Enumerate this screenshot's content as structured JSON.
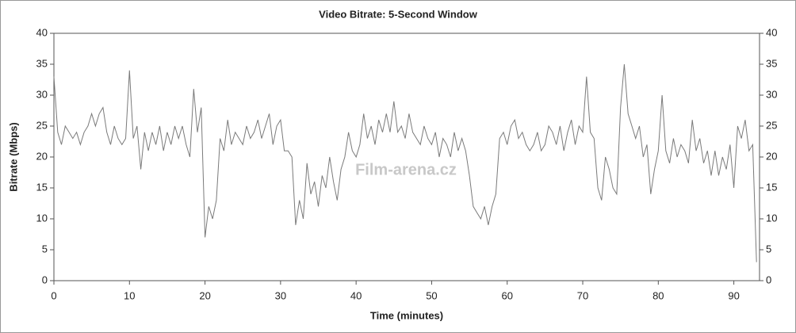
{
  "chart_data": {
    "type": "line",
    "title": "Video Bitrate: 5-Second Window",
    "x_label": "Time (minutes)",
    "y_label": "Bitrate (Mbps)",
    "watermark": "Film-arena.cz",
    "color": "#7a7a7a",
    "x": [
      0,
      0.5,
      1,
      1.5,
      2,
      2.5,
      3,
      3.5,
      4,
      4.5,
      5,
      5.5,
      6,
      6.5,
      7,
      7.5,
      8,
      8.5,
      9,
      9.5,
      10,
      10.5,
      11,
      11.5,
      12,
      12.5,
      13,
      13.5,
      14,
      14.5,
      15,
      15.5,
      16,
      16.5,
      17,
      17.5,
      18,
      18.5,
      19,
      19.5,
      20,
      20.5,
      21,
      21.5,
      22,
      22.5,
      23,
      23.5,
      24,
      24.5,
      25,
      25.5,
      26,
      26.5,
      27,
      27.5,
      28,
      28.5,
      29,
      29.5,
      30,
      30.5,
      31,
      31.5,
      32,
      32.5,
      33,
      33.5,
      34,
      34.5,
      35,
      35.5,
      36,
      36.5,
      37,
      37.5,
      38,
      38.5,
      39,
      39.5,
      40,
      40.5,
      41,
      41.5,
      42,
      42.5,
      43,
      43.5,
      44,
      44.5,
      45,
      45.5,
      46,
      46.5,
      47,
      47.5,
      48,
      48.5,
      49,
      49.5,
      50,
      50.5,
      51,
      51.5,
      52,
      52.5,
      53,
      53.5,
      54,
      54.5,
      55,
      55.5,
      56,
      56.5,
      57,
      57.5,
      58,
      58.5,
      59,
      59.5,
      60,
      60.5,
      61,
      61.5,
      62,
      62.5,
      63,
      63.5,
      64,
      64.5,
      65,
      65.5,
      66,
      66.5,
      67,
      67.5,
      68,
      68.5,
      69,
      69.5,
      70,
      70.5,
      71,
      71.5,
      72,
      72.5,
      73,
      73.5,
      74,
      74.5,
      75,
      75.5,
      76,
      76.5,
      77,
      77.5,
      78,
      78.5,
      79,
      79.5,
      80,
      80.5,
      81,
      81.5,
      82,
      82.5,
      83,
      83.5,
      84,
      84.5,
      85,
      85.5,
      86,
      86.5,
      87,
      87.5,
      88,
      88.5,
      89,
      89.5,
      90,
      90.5,
      91,
      91.5,
      92,
      92.5,
      93
    ],
    "values": [
      33,
      24,
      22,
      25,
      24,
      23,
      24,
      22,
      24,
      25,
      27,
      25,
      27,
      28,
      24,
      22,
      25,
      23,
      22,
      23,
      34,
      23,
      25,
      18,
      24,
      21,
      24,
      22,
      25,
      21,
      24,
      22,
      25,
      23,
      25,
      22,
      20,
      31,
      24,
      28,
      7,
      12,
      10,
      13,
      23,
      21,
      26,
      22,
      24,
      23,
      22,
      25,
      23,
      24,
      26,
      23,
      25,
      27,
      22,
      25,
      26,
      21,
      21,
      20,
      9,
      13,
      10,
      19,
      14,
      16,
      12,
      17,
      15,
      20,
      16,
      13,
      18,
      20,
      24,
      21,
      20,
      22,
      27,
      23,
      25,
      22,
      26,
      24,
      27,
      24,
      29,
      24,
      25,
      23,
      27,
      24,
      23,
      22,
      25,
      23,
      22,
      24,
      20,
      23,
      22,
      20,
      24,
      21,
      23,
      21,
      17,
      12,
      11,
      10,
      12,
      9,
      12,
      14,
      23,
      24,
      22,
      25,
      26,
      23,
      24,
      22,
      21,
      22,
      24,
      21,
      22,
      25,
      24,
      22,
      25,
      21,
      24,
      26,
      22,
      25,
      24,
      33,
      24,
      23,
      15,
      13,
      20,
      18,
      15,
      14,
      28,
      35,
      27,
      25,
      23,
      25,
      20,
      22,
      14,
      18,
      21,
      30,
      21,
      19,
      23,
      20,
      22,
      21,
      19,
      26,
      21,
      23,
      19,
      21,
      17,
      21,
      17,
      20,
      18,
      22,
      15,
      25,
      23,
      26,
      21,
      22,
      3
    ],
    "xlim": [
      0,
      93.4
    ],
    "ylim": [
      0,
      40
    ],
    "y2lim": [
      0,
      40
    ],
    "xticks": [
      0,
      10,
      20,
      30,
      40,
      50,
      60,
      70,
      80,
      90
    ],
    "yticks": [
      0,
      5,
      10,
      15,
      20,
      25,
      30,
      35,
      40
    ],
    "y2ticks": [
      0,
      5,
      10,
      15,
      20,
      25,
      30,
      35,
      40
    ]
  }
}
